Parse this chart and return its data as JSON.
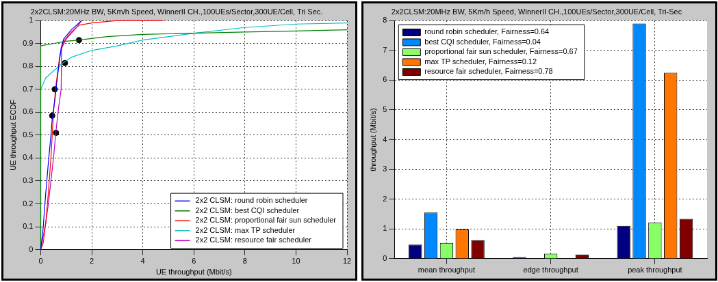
{
  "chart_data": [
    {
      "type": "line",
      "title": "2x2CLSM:20MHz BW, 5Km/h Speed, WinnerII CH.,100UEs/Sector,300UE/Cell, Tri Sec.",
      "xlabel": "UE throughput (Mbit/s)",
      "ylabel": "UE throughput ECDF",
      "xlim": [
        0,
        12
      ],
      "xticks": [
        0,
        2,
        4,
        6,
        8,
        10,
        12
      ],
      "ylim": [
        0,
        1
      ],
      "yticks": [
        0,
        0.1,
        0.2,
        0.3,
        0.4,
        0.5,
        0.6,
        0.7,
        0.8,
        0.9,
        1
      ],
      "grid": true,
      "legend": "bottom right",
      "line_style": "solid",
      "series": [
        {
          "name": "2x2 CLSM: round robin scheduler",
          "color": "#0000ff",
          "x": [
            0,
            0.05,
            0.1,
            0.15,
            0.2,
            0.3,
            0.4,
            0.45,
            0.55,
            0.65,
            0.8,
            0.9,
            1.2,
            1.6
          ],
          "values": [
            0,
            0.05,
            0.1,
            0.18,
            0.25,
            0.38,
            0.5,
            0.57,
            0.65,
            0.75,
            0.88,
            0.92,
            0.96,
            1
          ]
        },
        {
          "name": "2x2 CLSM: best CQI scheduler",
          "color": "#008000",
          "x": [
            0,
            0,
            0.5,
            1,
            1.5,
            2.6,
            4,
            6,
            8,
            10,
            12
          ],
          "values": [
            0,
            0.89,
            0.9,
            0.91,
            0.915,
            0.93,
            0.94,
            0.945,
            0.95,
            0.955,
            0.96
          ]
        },
        {
          "name": "2x2 CLSM: proportional fair sun scheduler",
          "color": "#ff0000",
          "x": [
            0,
            0.1,
            0.2,
            0.3,
            0.4,
            0.5,
            0.6,
            0.75,
            0.9,
            1.2,
            1.5,
            2,
            3,
            4.8
          ],
          "values": [
            0,
            0.03,
            0.12,
            0.25,
            0.4,
            0.6,
            0.72,
            0.85,
            0.91,
            0.95,
            0.98,
            0.99,
            1,
            1
          ]
        },
        {
          "name": "2x2 CLSM: max TP scheduler",
          "color": "#00bfbf",
          "x": [
            0,
            0,
            0.2,
            0.5,
            0.8,
            1.2,
            2,
            3,
            4,
            6,
            8,
            10,
            12
          ],
          "values": [
            0,
            0.7,
            0.75,
            0.78,
            0.81,
            0.84,
            0.87,
            0.89,
            0.915,
            0.945,
            0.97,
            0.985,
            0.99
          ]
        },
        {
          "name": "2x2 CLSM: resource fair scheduler",
          "color": "#bf00bf",
          "x": [
            0,
            0.2,
            0.3,
            0.4,
            0.5,
            0.6,
            0.7,
            0.8,
            0.82,
            1,
            1.4,
            1.6
          ],
          "values": [
            0,
            0.12,
            0.2,
            0.3,
            0.4,
            0.52,
            0.62,
            0.7,
            0.88,
            0.92,
            0.97,
            1
          ]
        },
        {
          "type": "scatter",
          "marker": "circle",
          "color": "#000000",
          "x": [
            1.5,
            0.95,
            0.55,
            0.45,
            0.6
          ],
          "values": [
            0.915,
            0.815,
            0.7,
            0.585,
            0.51
          ]
        }
      ]
    },
    {
      "type": "bar",
      "title": "2x2CLSM:20MHz BW, 5Km/h Speed, WinnerII CH.,100UEs/Sector,300UE/Cell, Tri-Sec",
      "ylabel": "throughput (Mbit/s)",
      "categories": [
        "mean throughput",
        "edge throughput",
        "peak throughput"
      ],
      "ylim": [
        0,
        8
      ],
      "yticks": [
        0,
        1,
        2,
        3,
        4,
        5,
        6,
        7,
        8
      ],
      "grid": true,
      "legend": "top left",
      "series": [
        {
          "name": "round robin scheduler, Fairness=0.64",
          "color": "#000080",
          "values": [
            0.47,
            0.05,
            1.1
          ]
        },
        {
          "name": "best CQI scheduler, Fairness=0.04",
          "color": "#0088ff",
          "values": [
            1.55,
            0,
            7.9
          ]
        },
        {
          "name": "proportional fair sun scheduler, Fairness=0.67",
          "color": "#88ff66",
          "values": [
            0.53,
            0.17,
            1.22
          ]
        },
        {
          "name": "max TP scheduler, Fairness=0.12",
          "color": "#ff7700",
          "values": [
            0.98,
            0,
            6.25
          ]
        },
        {
          "name": "resource fair scheduler, Fairness=0.78",
          "color": "#800000",
          "values": [
            0.62,
            0.14,
            1.34
          ]
        }
      ]
    }
  ]
}
